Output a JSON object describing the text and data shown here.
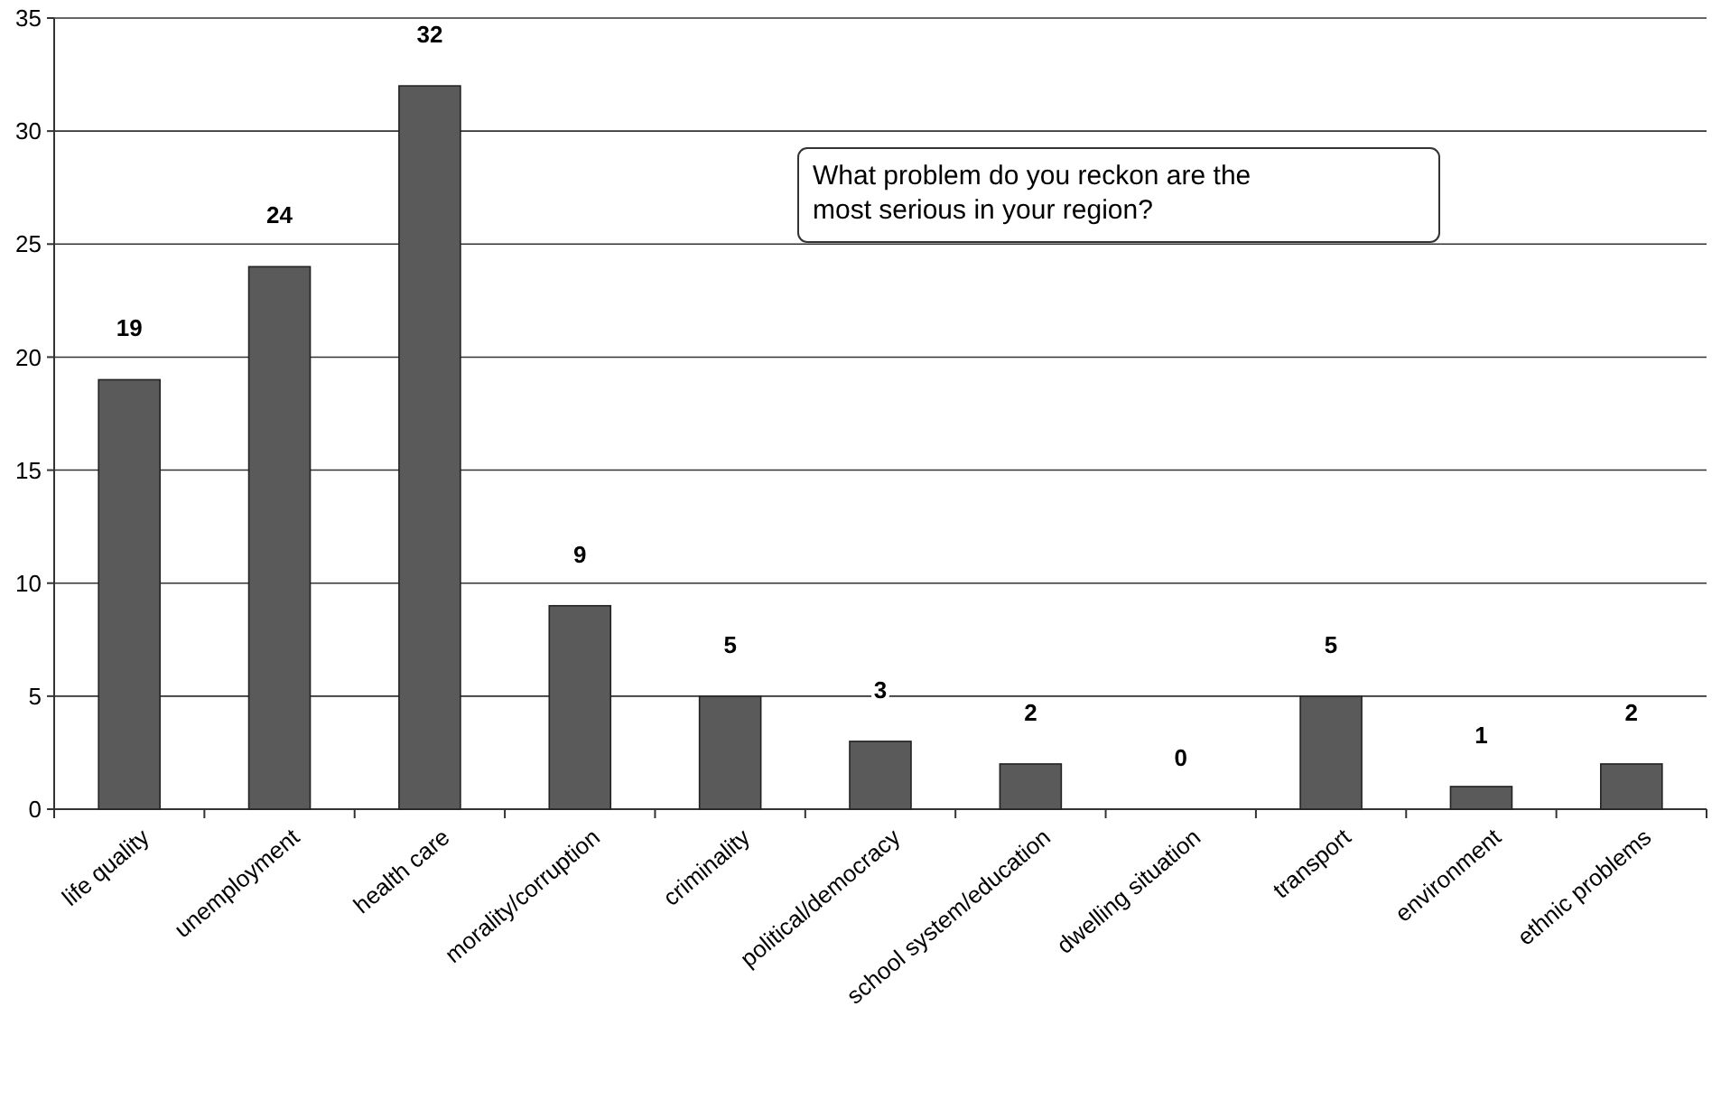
{
  "chart_data": {
    "type": "bar",
    "title": "What problem do you reckon are the most serious in your region?",
    "categories": [
      "life quality",
      "unemployment",
      "health care",
      "morality/corruption",
      "criminality",
      "political/democracy",
      "school system/education",
      "dwelling situation",
      "transport",
      "environment",
      "ethnic problems"
    ],
    "values": [
      19,
      24,
      32,
      9,
      5,
      3,
      2,
      0,
      5,
      1,
      2
    ],
    "color": "#5a5a5a",
    "ylim": [
      0,
      35
    ],
    "yticks": [
      0,
      5,
      10,
      15,
      20,
      25,
      30,
      35
    ],
    "grid": "y",
    "data_labels": true
  }
}
